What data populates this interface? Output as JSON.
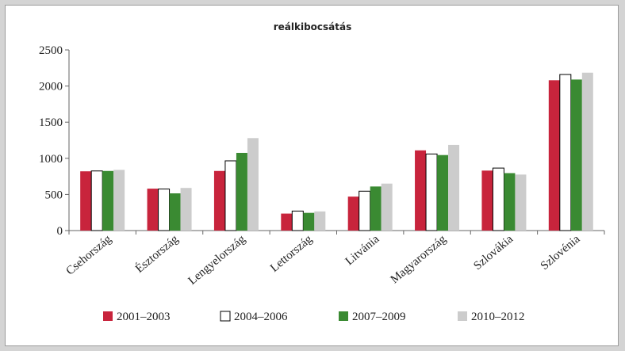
{
  "chart_data": {
    "type": "bar",
    "title": "reálkibocsátás",
    "xlabel": "",
    "ylabel": "",
    "ylim": [
      0,
      2500
    ],
    "yticks": [
      0,
      500,
      1000,
      1500,
      2000,
      2500
    ],
    "grid": false,
    "legend_position": "bottom",
    "categories": [
      "Csehország",
      "Észtország",
      "Lengyelország",
      "Lettország",
      "Litvánia",
      "Magyarország",
      "Szlovákia",
      "Szlovénia"
    ],
    "series": [
      {
        "name": "2001–2003",
        "color": "#c8243c",
        "values": [
          820,
          580,
          825,
          235,
          470,
          1110,
          830,
          2080
        ]
      },
      {
        "name": "2004–2006",
        "color": "#ffffff",
        "values": [
          825,
          575,
          965,
          270,
          545,
          1060,
          865,
          2160
        ]
      },
      {
        "name": "2007–2009",
        "color": "#3a8a32",
        "values": [
          825,
          515,
          1075,
          245,
          610,
          1045,
          795,
          2090
        ]
      },
      {
        "name": "2010–2012",
        "color": "#cccccc",
        "values": [
          840,
          590,
          1280,
          265,
          650,
          1185,
          775,
          2185
        ]
      }
    ]
  }
}
